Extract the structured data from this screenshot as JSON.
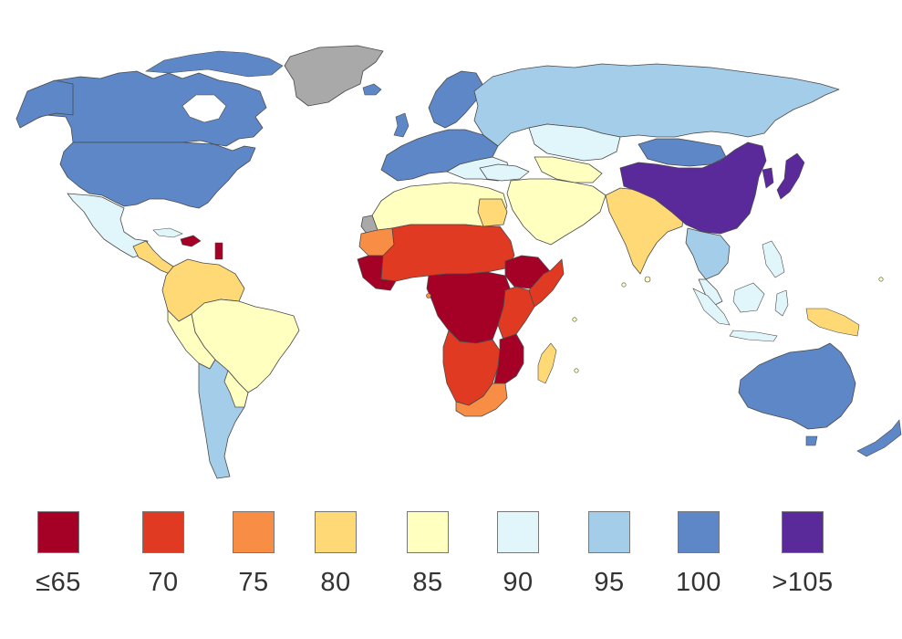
{
  "colors": {
    "le65": "#a50026",
    "c70": "#e03a22",
    "c75": "#f88d45",
    "c80": "#fed976",
    "c85": "#ffffc0",
    "c90": "#e0f6fb",
    "c95": "#a3cde8",
    "c100": "#5d87c6",
    "gt105": "#5b2a9a",
    "nodata": "#a9a9a9",
    "border": "#4a4a4a"
  },
  "legend": {
    "items": [
      {
        "label": "≤65",
        "color": "#a50026"
      },
      {
        "label": "70",
        "color": "#e03a22"
      },
      {
        "label": "75",
        "color": "#f88d45"
      },
      {
        "label": "80",
        "color": "#fed976"
      },
      {
        "label": "85",
        "color": "#ffffc0"
      },
      {
        "label": "90",
        "color": "#e0f6fb"
      },
      {
        "label": "95",
        "color": "#a3cde8"
      },
      {
        "label": "100",
        "color": "#5d87c6"
      },
      {
        "label": ">105",
        "color": "#5b2a9a"
      }
    ]
  }
}
